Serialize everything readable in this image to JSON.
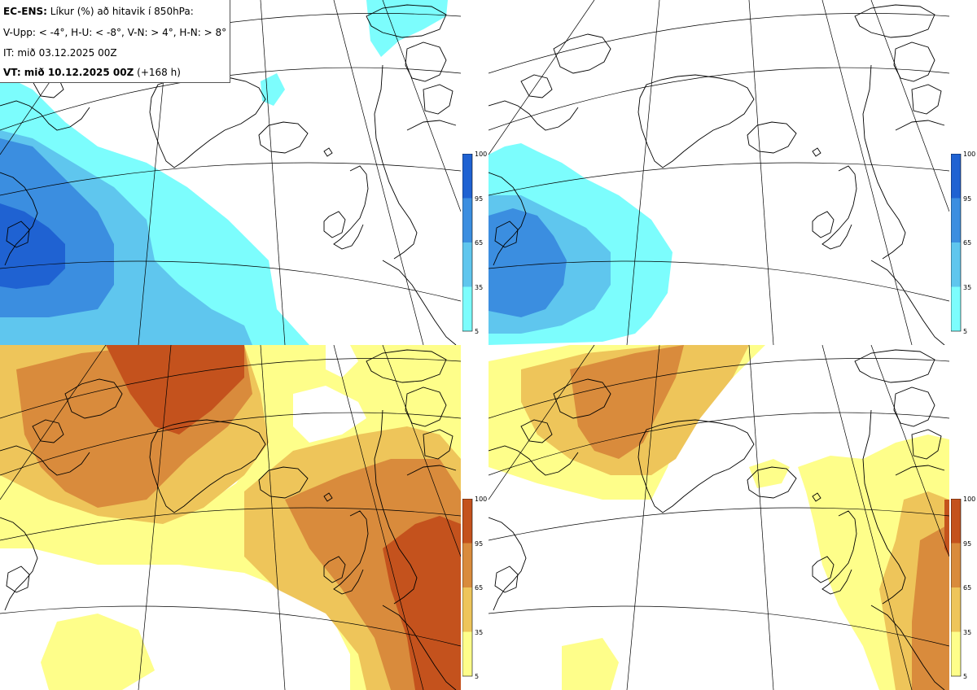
{
  "header": {
    "model": "EC-ENS:",
    "title": "Líkur (%) að hitavik í 850hPa:",
    "thresholds": "V-Upp: < -4°, H-U: < -8°, V-N: > 4°, H-N: > 8°",
    "init_time": "IT: mið 03.12.2025 00Z",
    "valid_label": "VT: mið 10.12.2025 00Z",
    "lead_time": "(+168 h)"
  },
  "panels": [
    {
      "id": "V-Upp",
      "meaning": "< -4°",
      "palette": "blue"
    },
    {
      "id": "H-U",
      "meaning": "< -8°",
      "palette": "blue"
    },
    {
      "id": "V-N",
      "meaning": "> 4°",
      "palette": "orange"
    },
    {
      "id": "H-N",
      "meaning": "> 8°",
      "palette": "orange"
    }
  ],
  "colorbar": {
    "ticks": [
      "100",
      "95",
      "65",
      "35",
      "5"
    ],
    "cold_colors": [
      "#1f62d2",
      "#3b8ee0",
      "#5fc6ee",
      "#7cfdfd"
    ],
    "warm_colors": [
      "#c4521d",
      "#d98b3c",
      "#eec55a",
      "#fefe8a"
    ]
  }
}
